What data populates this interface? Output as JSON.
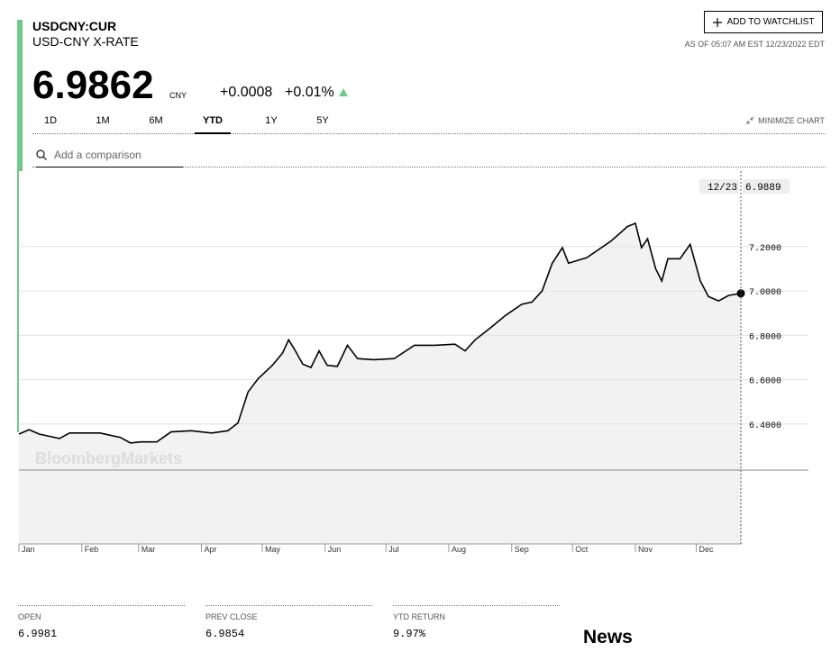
{
  "header": {
    "ticker": "USDCNY:CUR",
    "name": "USD-CNY X-RATE",
    "watchlist_button": "ADD TO WATCHLIST",
    "as_of": "AS OF 05:07 AM EST 12/23/2022 EDT",
    "price": "6.9862",
    "currency": "CNY",
    "change": "+0.0008",
    "change_pct": "+0.01%"
  },
  "tabs": [
    "1D",
    "1M",
    "6M",
    "YTD",
    "1Y",
    "5Y"
  ],
  "active_tab": "YTD",
  "minimize": "MINIMIZE CHART",
  "search_placeholder": "Add a comparison",
  "chart_data": {
    "type": "line",
    "watermark": "BloombergMarkets",
    "crosshair": {
      "x_label": "12/23",
      "value_label": "6.9889"
    },
    "color": "#000000",
    "area_color": "#f2f2f2",
    "x": [
      0,
      5,
      10,
      20,
      25,
      40,
      50,
      55,
      60,
      68,
      75,
      85,
      95,
      103,
      108,
      113,
      118,
      125,
      130,
      133,
      136,
      140,
      144,
      148,
      152,
      157,
      162,
      167,
      175,
      185,
      195,
      205,
      215,
      220,
      225,
      232,
      240,
      248,
      253,
      258,
      263,
      268,
      271,
      280,
      292,
      297,
      300,
      304,
      307,
      310,
      314,
      317,
      320,
      326,
      331,
      336,
      340,
      345,
      350,
      356
    ],
    "values": [
      6.355,
      6.375,
      6.355,
      6.335,
      6.36,
      6.36,
      6.34,
      6.315,
      6.32,
      6.32,
      6.365,
      6.37,
      6.36,
      6.37,
      6.405,
      6.545,
      6.605,
      6.665,
      6.72,
      6.78,
      6.735,
      6.67,
      6.655,
      6.73,
      6.665,
      6.66,
      6.755,
      6.695,
      6.69,
      6.695,
      6.755,
      6.755,
      6.76,
      6.73,
      6.78,
      6.83,
      6.89,
      6.94,
      6.95,
      7.0,
      7.125,
      7.195,
      7.125,
      7.15,
      7.225,
      7.265,
      7.29,
      7.305,
      7.195,
      7.235,
      7.1,
      7.045,
      7.145,
      7.145,
      7.21,
      7.045,
      6.975,
      6.955,
      6.98,
      6.9889
    ],
    "xlim": [
      0,
      356
    ],
    "xticks": [
      {
        "value": 0,
        "label": "Jan"
      },
      {
        "value": 31,
        "label": "Feb"
      },
      {
        "value": 59,
        "label": "Mar"
      },
      {
        "value": 90,
        "label": "Apr"
      },
      {
        "value": 120,
        "label": "May"
      },
      {
        "value": 151,
        "label": "Jun"
      },
      {
        "value": 181,
        "label": "Jul"
      },
      {
        "value": 212,
        "label": "Aug"
      },
      {
        "value": 243,
        "label": "Sep"
      },
      {
        "value": 273,
        "label": "Oct"
      },
      {
        "value": 304,
        "label": "Nov"
      },
      {
        "value": 334,
        "label": "Dec"
      }
    ],
    "ylim": [
      5.86,
      7.54
    ],
    "yticks": [
      {
        "value": 6.4,
        "label": "6.4000"
      },
      {
        "value": 6.6,
        "label": "6.6000"
      },
      {
        "value": 6.8,
        "label": "6.8000"
      },
      {
        "value": 7.0,
        "label": "7.0000"
      },
      {
        "value": 7.2,
        "label": "7.2000"
      }
    ],
    "grid": true
  },
  "stats": [
    {
      "label": "OPEN",
      "value": "6.9981"
    },
    {
      "label": "PREV CLOSE",
      "value": "6.9854"
    },
    {
      "label": "YTD RETURN",
      "value": "9.97%"
    }
  ],
  "news": "News"
}
